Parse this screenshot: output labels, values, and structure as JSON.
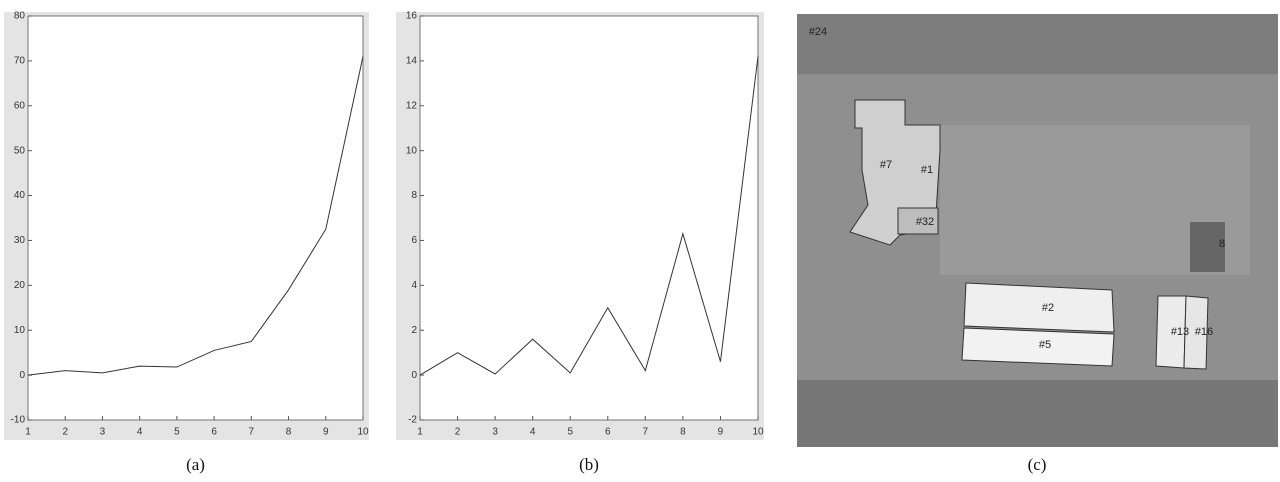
{
  "chart_data": [
    {
      "type": "line",
      "caption": "(a)",
      "x": [
        1,
        2,
        3,
        4,
        5,
        6,
        7,
        8,
        9,
        10
      ],
      "values": [
        0,
        1,
        0.5,
        2,
        1.8,
        5.5,
        7.5,
        19,
        32.5,
        71
      ],
      "color": "#333333",
      "xlim": [
        1,
        10
      ],
      "xticks": [
        1,
        2,
        3,
        4,
        5,
        6,
        7,
        8,
        9,
        10
      ],
      "ylim": [
        -10,
        80
      ],
      "yticks": [
        -10,
        0,
        10,
        20,
        30,
        40,
        50,
        60,
        70,
        80
      ]
    },
    {
      "type": "line",
      "caption": "(b)",
      "x": [
        1,
        2,
        3,
        4,
        5,
        6,
        7,
        8,
        9,
        10
      ],
      "values": [
        0,
        1,
        0.05,
        1.6,
        0.1,
        3,
        0.2,
        6.3,
        0.6,
        14.2
      ],
      "color": "#333333",
      "xlim": [
        1,
        10
      ],
      "xticks": [
        1,
        2,
        3,
        4,
        5,
        6,
        7,
        8,
        9,
        10
      ],
      "ylim": [
        -2,
        16
      ],
      "yticks": [
        -2,
        0,
        2,
        4,
        6,
        8,
        10,
        12,
        14,
        16
      ]
    }
  ],
  "image": {
    "caption": "(c)",
    "labels": [
      "#24",
      "#7",
      "#1",
      "#32",
      "#2",
      "#5",
      "#13",
      "#16",
      "8"
    ]
  }
}
